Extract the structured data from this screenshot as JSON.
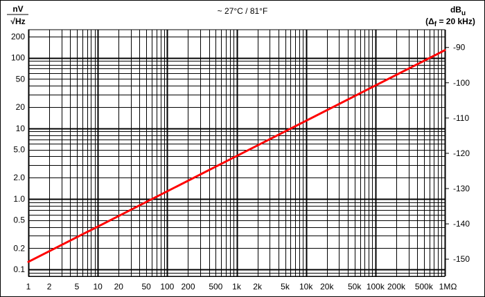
{
  "chart_data": {
    "type": "line",
    "title": "~ 27°C / 81°F",
    "left_axis": {
      "unit_numerator": "nV",
      "unit_denominator": "√Hz",
      "scale": "log",
      "range": [
        0.08,
        250
      ],
      "tick_labels": [
        "200",
        "100",
        "50",
        "20",
        "10",
        "5.0",
        "2.0",
        "1.0",
        "0.5",
        "0.2",
        "0.1"
      ],
      "tick_values": [
        200,
        100,
        50,
        20,
        10,
        5,
        2,
        1,
        0.5,
        0.2,
        0.1
      ]
    },
    "right_axis": {
      "unit_main": "dB",
      "unit_sub": "u",
      "unit_note": "(Δ",
      "unit_note_sub": "f",
      "unit_note_rest": "= 20 kHz)",
      "tick_labels": [
        "-90",
        "-100",
        "-110",
        "-120",
        "-130",
        "-140",
        "-150"
      ],
      "tick_values": [
        -90,
        -100,
        -110,
        -120,
        -130,
        -140,
        -150
      ]
    },
    "x_axis": {
      "scale": "log",
      "range": [
        1,
        1000000
      ],
      "unit": "Ω",
      "tick_labels": [
        "1",
        "2",
        "5",
        "10",
        "20",
        "50",
        "100",
        "200",
        "500",
        "1k",
        "2k",
        "5k",
        "10k",
        "20k",
        "50k",
        "100k",
        "200k",
        "500k",
        "1M"
      ],
      "tick_values": [
        1,
        2,
        5,
        10,
        20,
        50,
        100,
        200,
        500,
        1000,
        2000,
        5000,
        10000,
        20000,
        50000,
        100000,
        200000,
        500000,
        1000000
      ]
    },
    "grid": true,
    "series": [
      {
        "x": [
          1,
          1000000
        ],
        "y": [
          0.128,
          128
        ],
        "color": "#ff0000"
      }
    ]
  }
}
